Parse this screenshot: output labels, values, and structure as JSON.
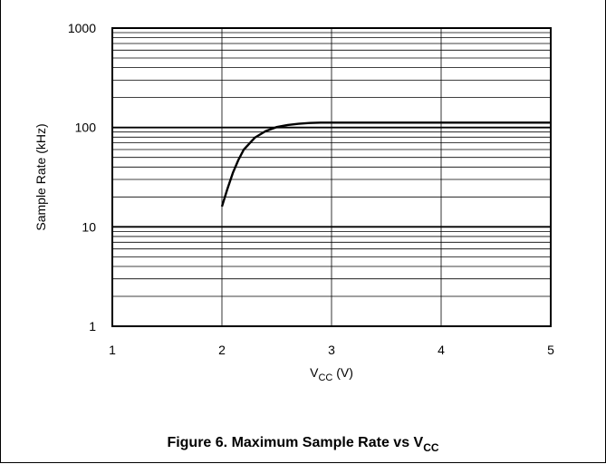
{
  "caption": {
    "main": "Figure 6. Maximum Sample Rate vs V",
    "sub": "CC"
  },
  "chart_data": {
    "type": "line",
    "title": "",
    "xlabel": {
      "main": "V",
      "sub": "CC",
      "unit": " (V)"
    },
    "ylabel": "Sample Rate (kHz)",
    "xscale": "linear",
    "yscale": "log",
    "xlim": [
      1,
      5
    ],
    "ylim": [
      1,
      1000
    ],
    "xticks": [
      "1",
      "2",
      "3",
      "4",
      "5"
    ],
    "yticks": [
      "1",
      "10",
      "100",
      "1000"
    ],
    "grid": true,
    "legend": "none",
    "series": [
      {
        "color": "#000000",
        "x": [
          2.0,
          2.05,
          2.1,
          2.15,
          2.2,
          2.3,
          2.4,
          2.5,
          2.6,
          2.7,
          2.8,
          2.9,
          3.0,
          3.5,
          4.0,
          4.5,
          5.0
        ],
        "y": [
          16,
          24,
          35,
          47,
          60,
          79,
          92,
          101,
          106,
          109,
          111,
          112,
          112,
          112,
          112,
          112,
          112
        ]
      }
    ]
  }
}
